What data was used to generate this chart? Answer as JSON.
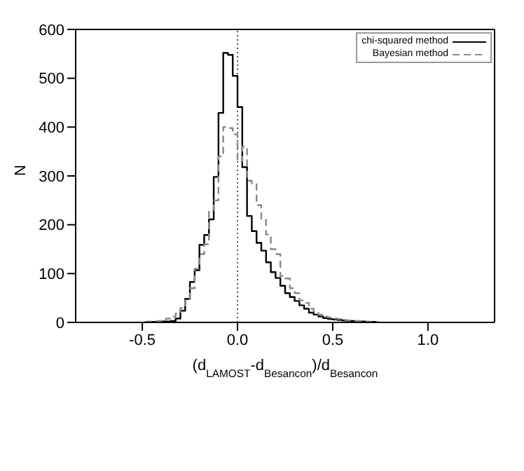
{
  "chart_data": {
    "type": "step",
    "xlabel": "(d$_{LAMOST}$-d$_{Besancon}$)/d$_{Besancon}$",
    "ylabel": "N",
    "x": [
      -0.4875,
      -0.4625,
      -0.4375,
      -0.4125,
      -0.3875,
      -0.3625,
      -0.3375,
      -0.3125,
      -0.2875,
      -0.2625,
      -0.2375,
      -0.2125,
      -0.1875,
      -0.1625,
      -0.1375,
      -0.1125,
      -0.0875,
      -0.0625,
      -0.0375,
      -0.0125,
      0.0125,
      0.0375,
      0.0625,
      0.0875,
      0.1125,
      0.1375,
      0.1625,
      0.1875,
      0.2125,
      0.2375,
      0.2625,
      0.2875,
      0.3125,
      0.3375,
      0.3625,
      0.3875,
      0.4125,
      0.4375,
      0.4625,
      0.4875,
      0.5125,
      0.5375,
      0.5625,
      0.5875,
      0.6125,
      0.6375,
      0.6625,
      0.6875,
      0.7125,
      0.7375
    ],
    "series": [
      {
        "name": "chi-squared method",
        "color": "#000000",
        "line_style": "solid",
        "values": [
          0,
          0,
          1,
          1,
          2,
          2,
          3,
          8,
          24,
          48,
          83,
          107,
          159,
          179,
          211,
          298,
          429,
          552,
          548,
          505,
          441,
          318,
          218,
          187,
          163,
          147,
          123,
          103,
          91,
          75,
          60,
          52,
          44,
          35,
          28,
          20,
          16,
          12,
          9,
          7,
          6,
          5,
          4,
          3,
          3,
          2,
          2,
          1,
          1,
          0
        ]
      },
      {
        "name": "Bayesian method",
        "color": "#888888",
        "line_style": "dashed",
        "values": [
          1,
          2,
          2,
          3,
          5,
          8,
          12,
          18,
          30,
          45,
          70,
          110,
          140,
          160,
          230,
          250,
          340,
          400,
          398,
          385,
          330,
          360,
          290,
          285,
          240,
          210,
          180,
          150,
          140,
          95,
          90,
          70,
          60,
          45,
          40,
          28,
          22,
          16,
          12,
          10,
          8,
          7,
          5,
          4,
          3,
          3,
          2,
          2,
          1,
          1
        ]
      }
    ],
    "xlim": [
      -0.85,
      1.35
    ],
    "xticks": [
      -0.5,
      {
        "value": 0,
        "label": "0.0"
      },
      0.5,
      {
        "value": 1,
        "label": "1.0"
      }
    ],
    "ylim": [
      0,
      600
    ],
    "yticks": [
      0,
      100,
      200,
      300,
      400,
      500,
      600
    ],
    "ref_lines": [
      {
        "axis": "x",
        "value": 0,
        "color": "#555555",
        "line_style": "dotted"
      }
    ],
    "legend": "top right",
    "grid": false
  }
}
